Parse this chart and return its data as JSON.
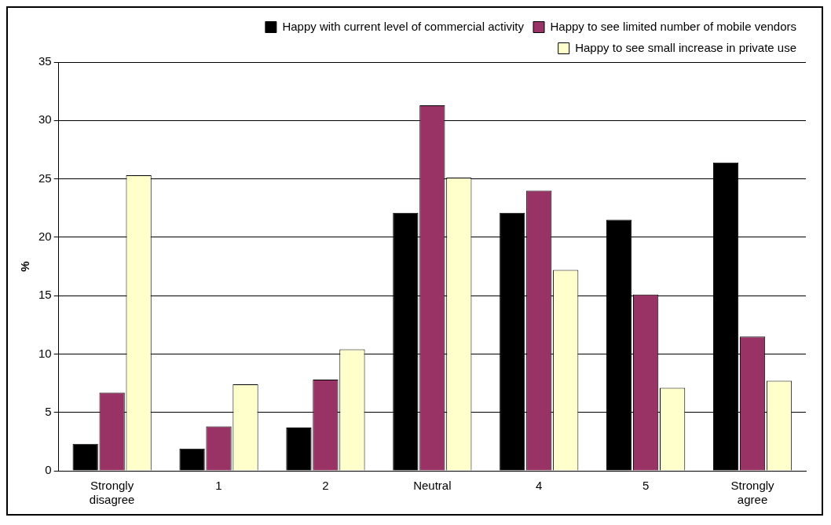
{
  "chart_data": {
    "type": "bar",
    "ylabel": "%",
    "categories": [
      "Strongly disagree",
      "1",
      "2",
      "Neutral",
      "4",
      "5",
      "Strongly agree"
    ],
    "series": [
      {
        "name": "Happy with current level of commercial activity",
        "color": "#000000",
        "values": [
          2.3,
          1.9,
          3.7,
          22.1,
          22.1,
          21.5,
          26.4
        ]
      },
      {
        "name": "Happy to see limited number of mobile vendors",
        "color": "#993366",
        "values": [
          6.7,
          3.8,
          7.8,
          31.3,
          24.0,
          15.1,
          11.5
        ]
      },
      {
        "name": "Happy to see small increase in private use",
        "color": "#ffffcc",
        "values": [
          25.3,
          7.4,
          10.4,
          25.1,
          17.2,
          7.1,
          7.7
        ]
      }
    ],
    "ylim": [
      0,
      35
    ],
    "yticks": [
      0,
      5,
      10,
      15,
      20,
      25,
      30,
      35
    ],
    "grid": "y",
    "legend": "top right"
  }
}
